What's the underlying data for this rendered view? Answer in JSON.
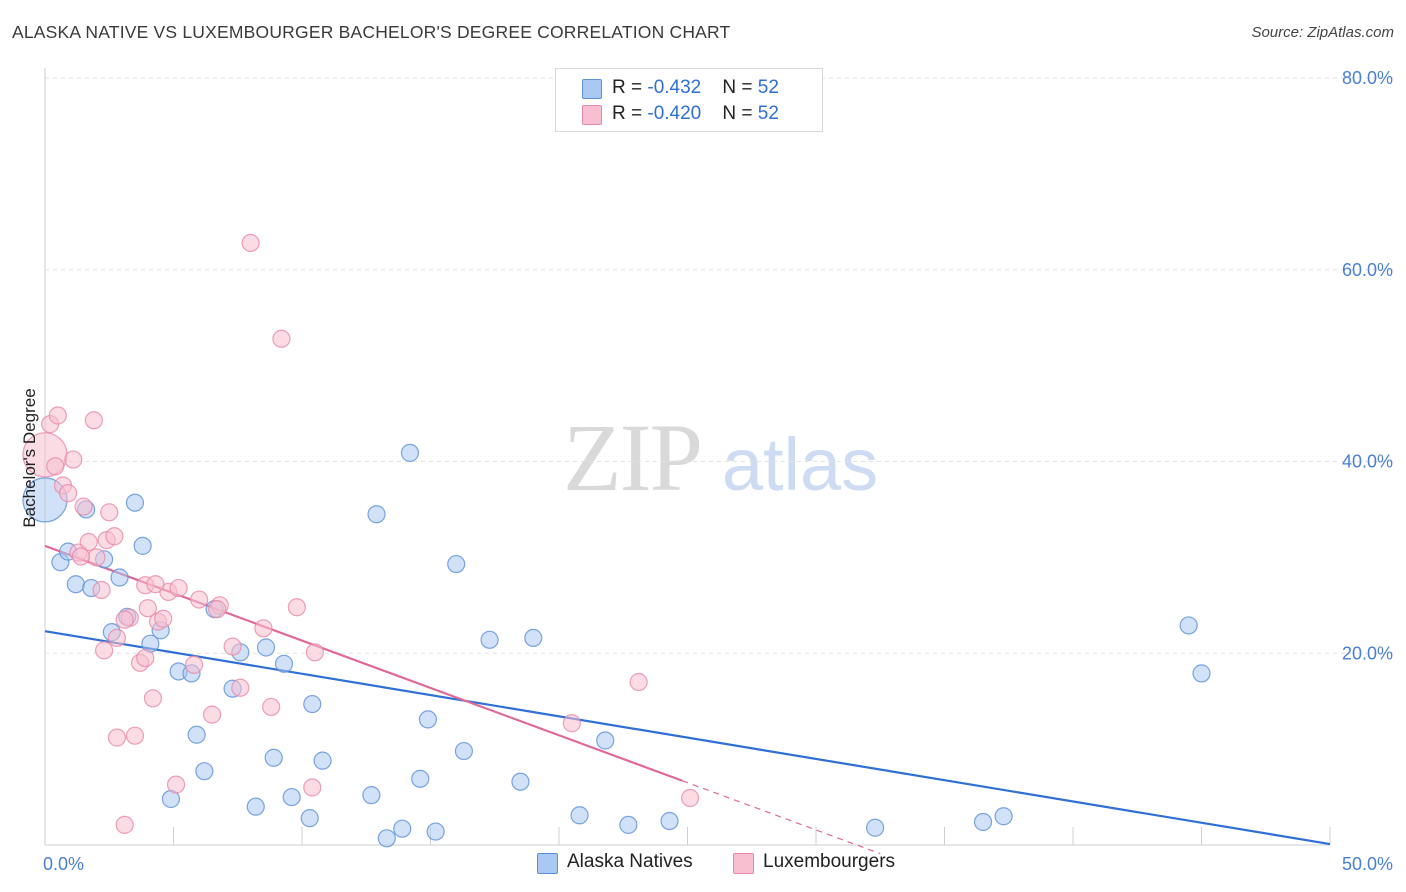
{
  "title": "ALASKA NATIVE VS LUXEMBOURGER BACHELOR'S DEGREE CORRELATION CHART",
  "source": "Source: ZipAtlas.com",
  "watermark": {
    "zip": "ZIP",
    "atlas": "atlas"
  },
  "legend": [
    {
      "r_label": "R = ",
      "r_value": "-0.432",
      "n_label": "N = ",
      "n_value": "52",
      "color": "#a9c8f2",
      "edge": "#5d8fd8"
    },
    {
      "r_label": "R = ",
      "r_value": "-0.420",
      "n_label": "N = ",
      "n_value": "52",
      "color": "#f7bfd0",
      "edge": "#e888a8"
    }
  ],
  "bottom_legend": [
    {
      "name": "Alaska Natives",
      "color": "#a9c8f2",
      "edge": "#5d8fd8"
    },
    {
      "name": "Luxembourgers",
      "color": "#f7bfd0",
      "edge": "#e888a8"
    }
  ],
  "chart_data": {
    "type": "scatter",
    "title": "ALASKA NATIVE VS LUXEMBOURGER BACHELOR'S DEGREE CORRELATION CHART",
    "xlabel": "",
    "ylabel": "Bachelor's Degree",
    "xlim": [
      0,
      50
    ],
    "ylim": [
      0,
      80
    ],
    "x_tick_labels": [
      "0.0%",
      "50.0%"
    ],
    "y_ticks": [
      20,
      40,
      60,
      80
    ],
    "y_tick_labels": [
      "20.0%",
      "40.0%",
      "60.0%",
      "80.0%"
    ],
    "grid": true,
    "legend_position": "top-center",
    "series": [
      {
        "name": "Alaska Natives",
        "color": "#5d8fd8",
        "fill": "#a9c8f2",
        "trend": {
          "x": [
            0,
            50
          ],
          "y": [
            22.3,
            0.1
          ]
        },
        "points": [
          {
            "x": 0.0,
            "y": 36.0,
            "big": true
          },
          {
            "x": 0.6,
            "y": 29.5
          },
          {
            "x": 0.9,
            "y": 30.6
          },
          {
            "x": 1.2,
            "y": 27.2
          },
          {
            "x": 1.6,
            "y": 35.0
          },
          {
            "x": 1.8,
            "y": 26.8
          },
          {
            "x": 2.3,
            "y": 29.8
          },
          {
            "x": 2.6,
            "y": 22.2
          },
          {
            "x": 2.9,
            "y": 27.9
          },
          {
            "x": 3.2,
            "y": 23.8
          },
          {
            "x": 3.5,
            "y": 35.7
          },
          {
            "x": 3.8,
            "y": 31.2
          },
          {
            "x": 4.1,
            "y": 21.0
          },
          {
            "x": 4.5,
            "y": 22.4
          },
          {
            "x": 4.9,
            "y": 4.8
          },
          {
            "x": 5.2,
            "y": 18.1
          },
          {
            "x": 5.7,
            "y": 17.9
          },
          {
            "x": 5.9,
            "y": 11.5
          },
          {
            "x": 6.2,
            "y": 7.7
          },
          {
            "x": 6.6,
            "y": 24.6
          },
          {
            "x": 7.3,
            "y": 16.3
          },
          {
            "x": 7.6,
            "y": 20.1
          },
          {
            "x": 8.2,
            "y": 4.0
          },
          {
            "x": 8.6,
            "y": 20.6
          },
          {
            "x": 8.9,
            "y": 9.1
          },
          {
            "x": 9.3,
            "y": 18.9
          },
          {
            "x": 9.6,
            "y": 5.0
          },
          {
            "x": 10.3,
            "y": 2.8
          },
          {
            "x": 10.4,
            "y": 14.7
          },
          {
            "x": 10.8,
            "y": 8.8
          },
          {
            "x": 12.7,
            "y": 5.2
          },
          {
            "x": 12.9,
            "y": 34.5
          },
          {
            "x": 13.3,
            "y": 0.7
          },
          {
            "x": 13.9,
            "y": 1.7
          },
          {
            "x": 14.2,
            "y": 40.9
          },
          {
            "x": 14.6,
            "y": 6.9
          },
          {
            "x": 14.9,
            "y": 13.1
          },
          {
            "x": 15.2,
            "y": 1.4
          },
          {
            "x": 16.3,
            "y": 9.8
          },
          {
            "x": 16.0,
            "y": 29.3
          },
          {
            "x": 17.3,
            "y": 21.4
          },
          {
            "x": 18.5,
            "y": 6.6
          },
          {
            "x": 19.0,
            "y": 21.6
          },
          {
            "x": 20.8,
            "y": 3.1
          },
          {
            "x": 21.8,
            "y": 10.9
          },
          {
            "x": 22.7,
            "y": 2.1
          },
          {
            "x": 24.3,
            "y": 2.5
          },
          {
            "x": 32.3,
            "y": 1.8
          },
          {
            "x": 36.5,
            "y": 2.4
          },
          {
            "x": 37.3,
            "y": 3.0
          },
          {
            "x": 44.5,
            "y": 22.9
          },
          {
            "x": 45.0,
            "y": 17.9
          }
        ]
      },
      {
        "name": "Luxembourgers",
        "color": "#e888a8",
        "fill": "#f7bfd0",
        "trend": {
          "x": [
            0,
            24.8
          ],
          "y": [
            31.2,
            6.7
          ]
        },
        "trend_dashed": {
          "x": [
            24.8,
            32.5
          ],
          "y": [
            6.7,
            -0.9
          ]
        },
        "points": [
          {
            "x": 0.0,
            "y": 40.7,
            "big": true
          },
          {
            "x": 0.2,
            "y": 43.9
          },
          {
            "x": 0.4,
            "y": 39.5
          },
          {
            "x": 0.5,
            "y": 44.8
          },
          {
            "x": 0.7,
            "y": 37.5
          },
          {
            "x": 0.9,
            "y": 36.7
          },
          {
            "x": 1.1,
            "y": 40.2
          },
          {
            "x": 1.3,
            "y": 30.5
          },
          {
            "x": 1.5,
            "y": 35.3
          },
          {
            "x": 1.7,
            "y": 31.6
          },
          {
            "x": 1.9,
            "y": 44.3
          },
          {
            "x": 2.0,
            "y": 30.0
          },
          {
            "x": 2.2,
            "y": 26.6
          },
          {
            "x": 2.3,
            "y": 20.3
          },
          {
            "x": 2.4,
            "y": 31.8
          },
          {
            "x": 2.5,
            "y": 34.7
          },
          {
            "x": 2.7,
            "y": 32.2
          },
          {
            "x": 2.8,
            "y": 21.6
          },
          {
            "x": 2.8,
            "y": 11.2
          },
          {
            "x": 3.1,
            "y": 2.1
          },
          {
            "x": 3.3,
            "y": 23.7
          },
          {
            "x": 3.5,
            "y": 11.4
          },
          {
            "x": 3.7,
            "y": 19.0
          },
          {
            "x": 3.9,
            "y": 27.1
          },
          {
            "x": 4.0,
            "y": 24.7
          },
          {
            "x": 4.2,
            "y": 15.3
          },
          {
            "x": 4.4,
            "y": 23.3
          },
          {
            "x": 4.6,
            "y": 23.6
          },
          {
            "x": 4.8,
            "y": 26.4
          },
          {
            "x": 5.1,
            "y": 6.3
          },
          {
            "x": 5.2,
            "y": 26.8
          },
          {
            "x": 5.8,
            "y": 18.8
          },
          {
            "x": 6.0,
            "y": 25.6
          },
          {
            "x": 6.5,
            "y": 13.6
          },
          {
            "x": 6.8,
            "y": 25.0
          },
          {
            "x": 7.3,
            "y": 20.7
          },
          {
            "x": 7.6,
            "y": 16.4
          },
          {
            "x": 8.0,
            "y": 62.8
          },
          {
            "x": 8.5,
            "y": 22.6
          },
          {
            "x": 8.8,
            "y": 14.4
          },
          {
            "x": 9.2,
            "y": 52.8
          },
          {
            "x": 9.8,
            "y": 24.8
          },
          {
            "x": 10.4,
            "y": 6.0
          },
          {
            "x": 10.5,
            "y": 20.1
          },
          {
            "x": 20.5,
            "y": 12.7
          },
          {
            "x": 23.1,
            "y": 17.0
          },
          {
            "x": 25.1,
            "y": 4.9
          },
          {
            "x": 3.9,
            "y": 19.5
          },
          {
            "x": 1.4,
            "y": 30.1
          },
          {
            "x": 6.7,
            "y": 24.6
          },
          {
            "x": 4.3,
            "y": 27.2
          },
          {
            "x": 3.1,
            "y": 23.5
          }
        ]
      }
    ]
  }
}
